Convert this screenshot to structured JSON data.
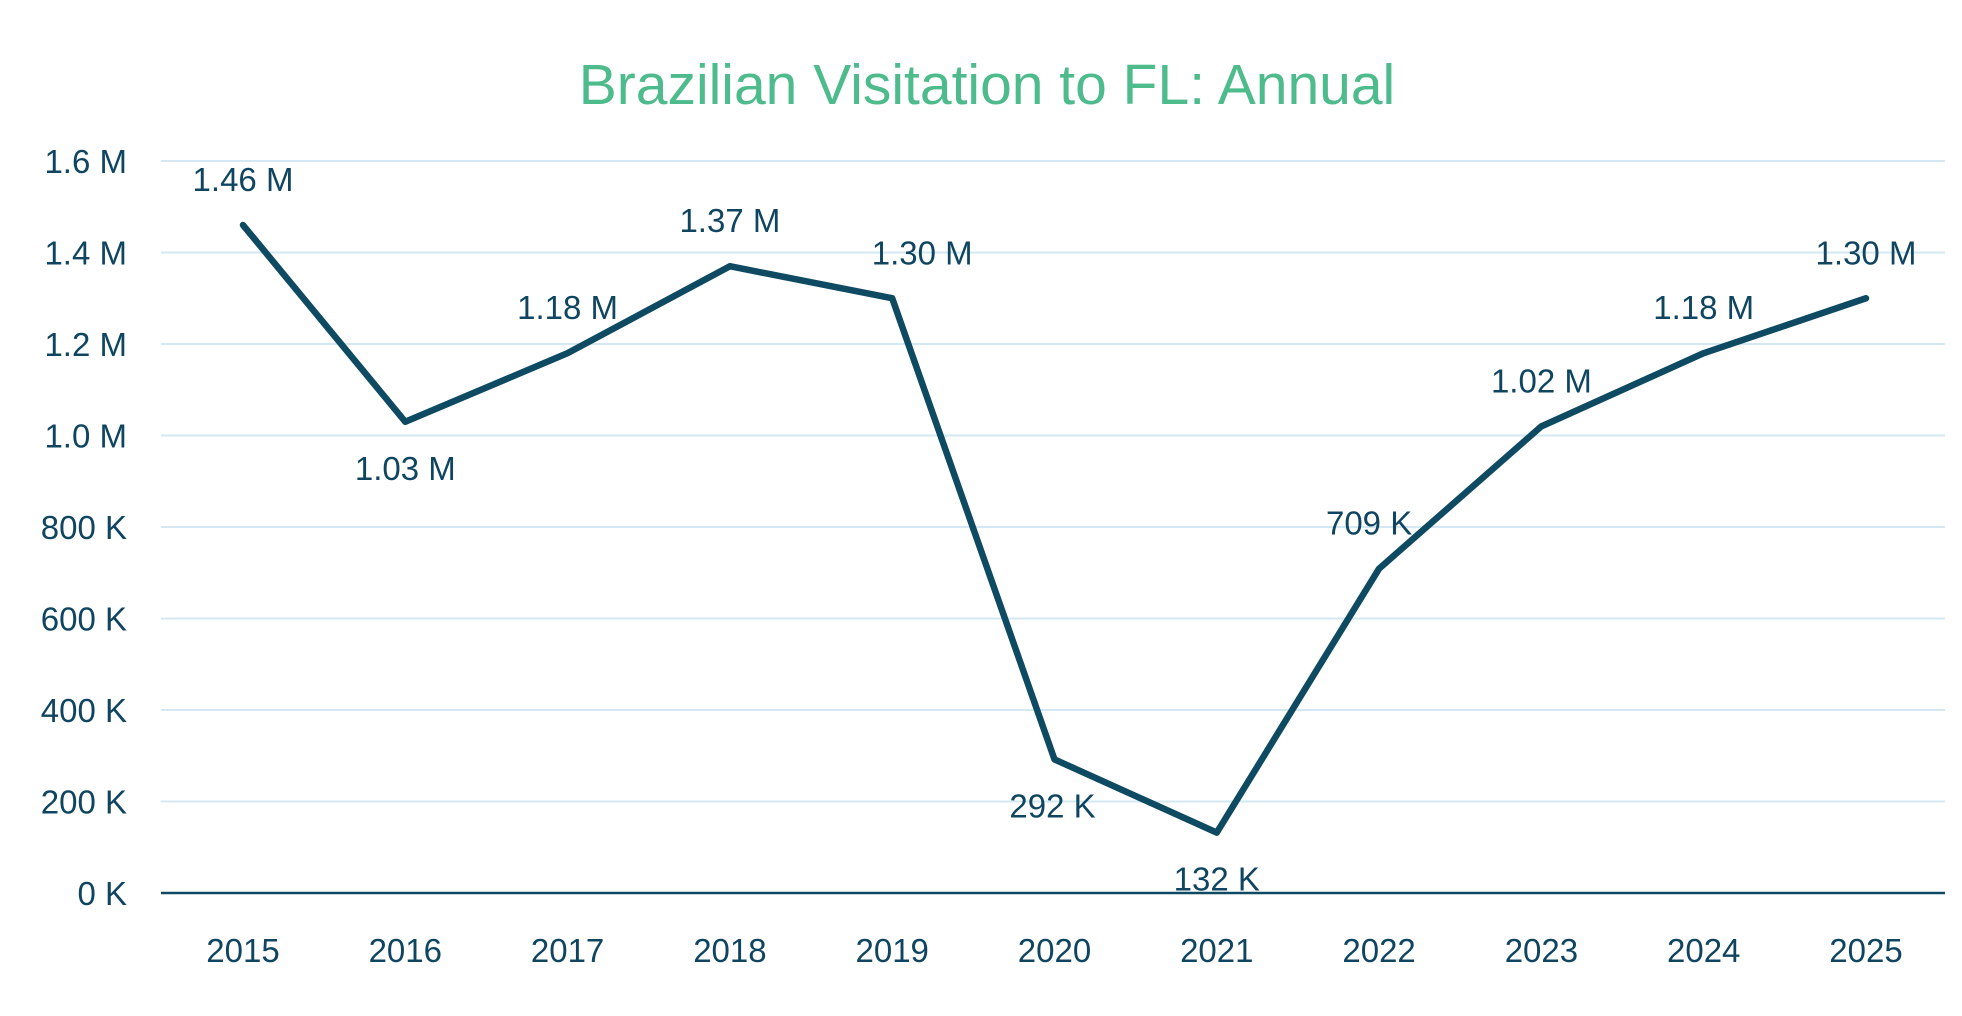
{
  "chart_data": {
    "type": "line",
    "title": "Brazilian Visitation to FL: Annual",
    "xlabel": "",
    "ylabel": "",
    "categories": [
      "2015",
      "2016",
      "2017",
      "2018",
      "2019",
      "2020",
      "2021",
      "2022",
      "2023",
      "2024",
      "2025"
    ],
    "values": [
      1460000,
      1030000,
      1180000,
      1370000,
      1300000,
      292000,
      132000,
      709000,
      1020000,
      1180000,
      1300000
    ],
    "data_labels": [
      "1.46 M",
      "1.03 M",
      "1.18 M",
      "1.37 M",
      "1.30 M",
      "292 K",
      "132 K",
      "709 K",
      "1.02 M",
      "1.18 M",
      "1.30 M"
    ],
    "ylim": [
      0,
      1600000
    ],
    "yticks": [
      0,
      200000,
      400000,
      600000,
      800000,
      1000000,
      1200000,
      1400000,
      1600000
    ],
    "ytick_labels": [
      "0 K",
      "200 K",
      "400 K",
      "600 K",
      "800 K",
      "1.0 M",
      "1.2 M",
      "1.4 M",
      "1.6 M"
    ],
    "grid": true,
    "legend": "none",
    "colors": {
      "line": "#0f4a63",
      "title": "#4dbb8c",
      "grid": "#d3e8f2",
      "axis": "#0f4a63",
      "text": "#0f4560"
    }
  }
}
